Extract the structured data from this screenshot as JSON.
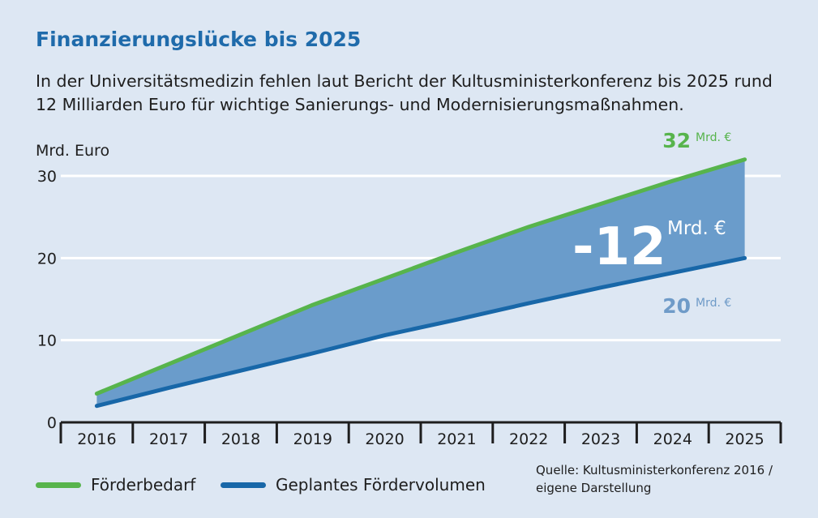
{
  "colors": {
    "background": "#dde7f3",
    "title": "#1f6bab",
    "demand": "#57b44c",
    "planned": "#1867a8",
    "gap_fill": "#6a9ccb",
    "gap_label": "#ffffff",
    "end_label_planned": "#6f9bc8",
    "grid": "#ffffff",
    "axis": "#1e1e1e"
  },
  "chart_data": {
    "type": "area",
    "title": "Finanzierungslücke bis 2025",
    "subtitle": "In der Universitätsmedizin fehlen laut Bericht der Kultusministerkonferenz bis 2025 rund 12 Milliarden Euro für wichtige Sanierungs- und Modernisierungsmaßnahmen.",
    "ylabel": "Mrd. Euro",
    "ylim": [
      0,
      30
    ],
    "yticks": [
      "0",
      "10",
      "20",
      "30"
    ],
    "categories": [
      "2016",
      "2017",
      "2018",
      "2019",
      "2020",
      "2021",
      "2022",
      "2023",
      "2024",
      "2025"
    ],
    "grid": true,
    "legend_position": "bottom-left",
    "series": [
      {
        "name": "Förderbedarf",
        "color": "#57b44c",
        "values": [
          3.5,
          7.1,
          10.7,
          14.3,
          17.5,
          20.7,
          23.8,
          26.6,
          29.4,
          32
        ]
      },
      {
        "name": "Geplantes Fördervolumen",
        "color": "#1867a8",
        "values": [
          2,
          4.2,
          6.3,
          8.4,
          10.6,
          12.5,
          14.5,
          16.4,
          18.2,
          20
        ]
      }
    ],
    "annotations": {
      "demand_end": {
        "value": "32",
        "unit": "Mrd. €"
      },
      "planned_end": {
        "value": "20",
        "unit": "Mrd. €"
      },
      "gap": {
        "value": "-12",
        "unit": "Mrd. €"
      }
    },
    "source": [
      "Quelle: Kultusministerkonferenz 2016 /",
      "eigene Darstellung"
    ]
  }
}
